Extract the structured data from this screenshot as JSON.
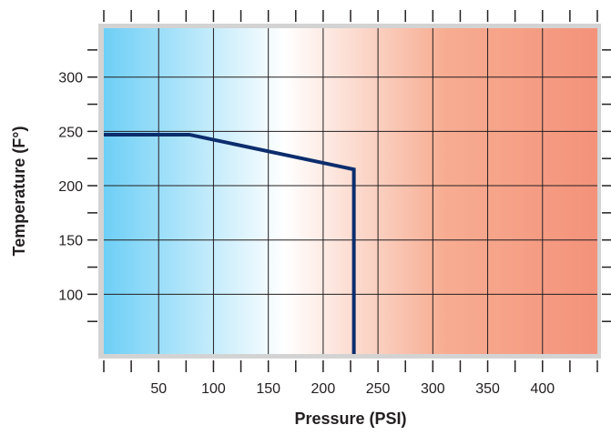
{
  "chart_data": {
    "type": "line",
    "xlabel": "Pressure (PSI)",
    "ylabel": "Temperature (F°)",
    "xlim": [
      0,
      450
    ],
    "ylim": [
      45,
      345
    ],
    "x_ticks": [
      50,
      100,
      150,
      200,
      250,
      300,
      350,
      400
    ],
    "y_ticks": [
      100,
      150,
      200,
      250,
      300
    ],
    "x_minor_step": 25,
    "y_minor_step": 25,
    "grid": true,
    "background_gradient": {
      "direction": "left-to-right",
      "stops": [
        {
          "x": 0,
          "color": "#6ecff6"
        },
        {
          "x": 165,
          "color": "#ffffff"
        },
        {
          "x": 310,
          "color": "#f7ad92"
        },
        {
          "x": 450,
          "color": "#f4927a"
        }
      ]
    },
    "series": [
      {
        "color": "#0b2d6d",
        "points": [
          {
            "x": 0,
            "y": 247
          },
          {
            "x": 78,
            "y": 247
          },
          {
            "x": 228,
            "y": 215
          },
          {
            "x": 228,
            "y": 45
          }
        ]
      }
    ]
  }
}
